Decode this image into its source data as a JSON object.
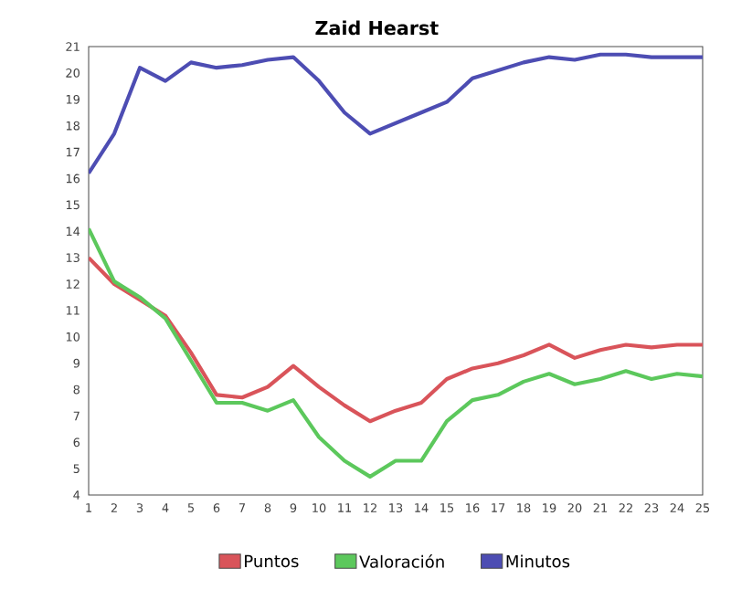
{
  "chart_data": {
    "type": "line",
    "title": "Zaid Hearst",
    "categories": [
      "1",
      "2",
      "3",
      "4",
      "5",
      "6",
      "7",
      "8",
      "9",
      "10",
      "11",
      "12",
      "13",
      "14",
      "15",
      "16",
      "17",
      "18",
      "19",
      "20",
      "21",
      "22",
      "23",
      "24",
      "25"
    ],
    "series": [
      {
        "name": "Puntos",
        "color": "#d9545a",
        "values": [
          13.0,
          12.0,
          11.4,
          10.8,
          9.4,
          7.8,
          7.7,
          8.1,
          8.9,
          8.1,
          7.4,
          6.8,
          7.2,
          7.5,
          8.4,
          8.8,
          9.0,
          9.3,
          9.7,
          9.2,
          9.5,
          9.7,
          9.6,
          9.7,
          9.7
        ]
      },
      {
        "name": "Valoración",
        "color": "#5cc85c",
        "values": [
          14.1,
          12.1,
          11.5,
          10.7,
          9.1,
          7.5,
          7.5,
          7.2,
          7.6,
          6.2,
          5.3,
          4.7,
          5.3,
          5.3,
          6.8,
          7.6,
          7.8,
          8.3,
          8.6,
          8.2,
          8.4,
          8.7,
          8.4,
          8.6,
          8.5
        ]
      },
      {
        "name": "Minutos",
        "color": "#4d4db3",
        "values": [
          16.2,
          17.7,
          20.2,
          19.7,
          20.4,
          20.2,
          20.3,
          20.5,
          20.6,
          19.7,
          18.5,
          17.7,
          18.1,
          18.5,
          18.9,
          19.8,
          20.1,
          20.4,
          20.6,
          20.5,
          20.7,
          20.7,
          20.6,
          20.6,
          20.6
        ]
      }
    ],
    "ylim": [
      4,
      21
    ],
    "yticks": [
      4,
      5,
      6,
      7,
      8,
      9,
      10,
      11,
      12,
      13,
      14,
      15,
      16,
      17,
      18,
      19,
      20,
      21
    ],
    "grid": false,
    "legend": "bottom",
    "marker": "none",
    "line_style": "solid"
  }
}
